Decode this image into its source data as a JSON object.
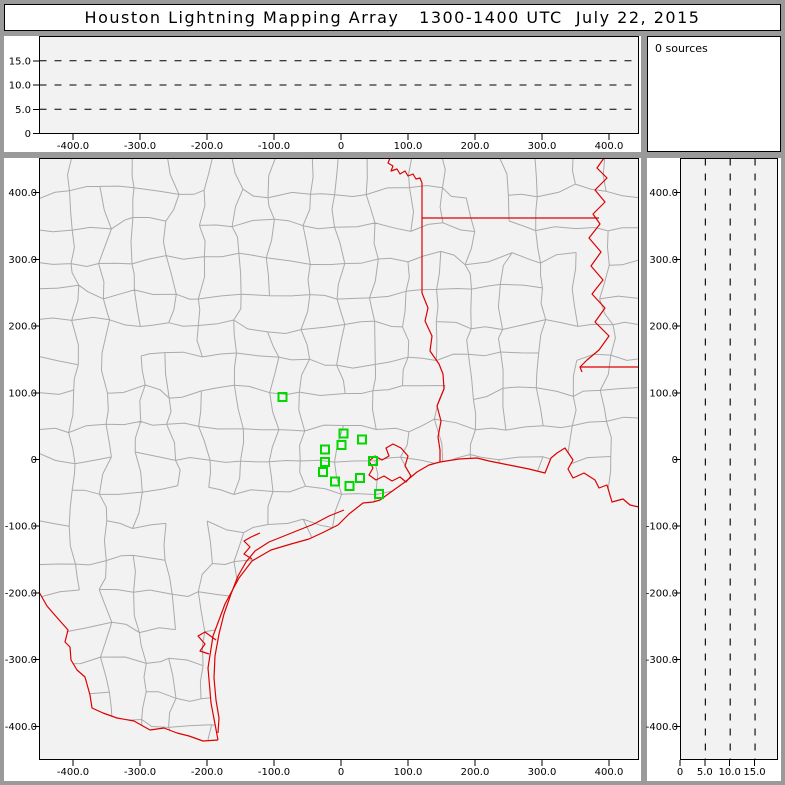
{
  "window": {
    "title": "Houston Lightning Mapping Array   1300-1400 UTC  July 22, 2015"
  },
  "panels": {
    "sources": {
      "label": "0 sources"
    }
  },
  "colors": {
    "state_border_red": "#dd0000",
    "county_gray": "#aaaaaa",
    "station_green": "#00d800",
    "plot_background": "#f2f2f2",
    "chrome_gray": "#9a9a9a"
  },
  "chart_data": [
    {
      "id": "alt-vs-east-west",
      "type": "scatter",
      "description": "altitude vs east-west distance panel, no lightning sources plotted",
      "x_ticks": {
        "values": [
          -400,
          -300,
          -200,
          -100,
          0,
          100,
          200,
          300,
          400
        ],
        "labels": [
          "-400.0",
          "-300.0",
          "-200.0",
          "-100.0",
          "0",
          "100.0",
          "200.0",
          "300.0",
          "400.0"
        ]
      },
      "y_ticks": {
        "values": [
          0,
          5,
          10,
          15
        ],
        "labels": [
          "0",
          "5.0",
          "10.0",
          "15.0"
        ]
      },
      "x_range": [
        -451,
        449
      ],
      "y_range": [
        0,
        20
      ],
      "dashed_altitude_lines_km": [
        5,
        10,
        15
      ],
      "points": []
    },
    {
      "id": "plan-view-map",
      "type": "scatter",
      "description": "plan view map with county and state borders, green squares are LMA stations, no lightning sources plotted",
      "x_ticks": {
        "values": [
          -400,
          -300,
          -200,
          -100,
          0,
          100,
          200,
          300,
          400
        ],
        "labels": [
          "-400.0",
          "-300.0",
          "-200.0",
          "-100.0",
          "0",
          "100.0",
          "200.0",
          "300.0",
          "400.0"
        ]
      },
      "y_ticks": {
        "values": [
          400,
          300,
          200,
          100,
          0,
          -100,
          -200,
          -300,
          -400
        ],
        "labels": [
          "400.0",
          "300.0",
          "200.0",
          "100.0",
          "0",
          "-100.0",
          "-200.0",
          "-300.0",
          "-400.0"
        ]
      },
      "x_range": [
        -451,
        449
      ],
      "y_range": [
        -451,
        451
      ],
      "lma_stations_km": [
        [
          -87,
          94
        ],
        [
          4,
          39
        ],
        [
          31,
          30
        ],
        [
          1,
          22
        ],
        [
          -24,
          15
        ],
        [
          -24,
          -4
        ],
        [
          48,
          -2
        ],
        [
          -27,
          -19
        ],
        [
          -9,
          -33
        ],
        [
          28,
          -28
        ],
        [
          13,
          -40
        ],
        [
          57,
          -52
        ]
      ],
      "points": []
    },
    {
      "id": "alt-vs-north-south",
      "type": "scatter",
      "description": "altitude vs north-south distance panel, no lightning sources plotted",
      "x_ticks": {
        "values": [
          0,
          5,
          10,
          15
        ],
        "labels": [
          "0",
          "5.0",
          "10.0",
          "15.0"
        ]
      },
      "y_ticks": {
        "values": [
          400,
          300,
          200,
          100,
          0,
          -100,
          -200,
          -300,
          -400
        ],
        "labels": [
          "400.0",
          "300.0",
          "200.0",
          "100.0",
          "0",
          "-100.0",
          "-200.0",
          "-300.0",
          "-400.0"
        ]
      },
      "x_range": [
        0,
        20
      ],
      "y_range": [
        -451,
        451
      ],
      "dashed_altitude_lines_km": [
        5,
        10,
        15
      ],
      "points": []
    },
    {
      "id": "source-count",
      "type": "text",
      "value": "0 sources"
    }
  ]
}
